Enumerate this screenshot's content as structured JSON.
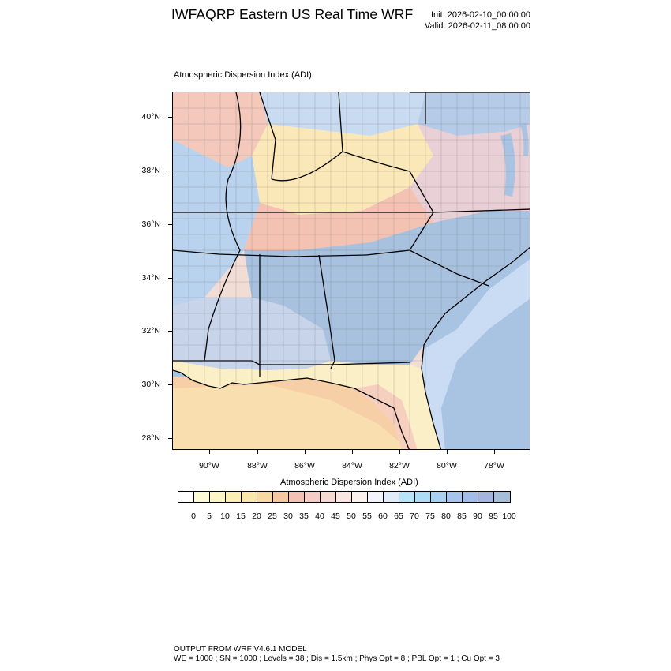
{
  "header": {
    "title": "IWFAQRP Eastern US Real Time WRF",
    "init": "Init: 2026-02-10_00:00:00",
    "valid": "Valid: 2026-02-11_08:00:00"
  },
  "plot_label": "Atmospheric Dispersion Index   (ADI)",
  "map": {
    "lat_labels": [
      "40°N",
      "38°N",
      "36°N",
      "34°N",
      "32°N",
      "30°N",
      "28°N"
    ],
    "lon_labels": [
      "90°W",
      "88°W",
      "86°W",
      "84°W",
      "82°W",
      "80°W",
      "78°W"
    ],
    "colors": {
      "ocean_offshore": "#a9c3e3",
      "ocean_near_coast": "#c9dcf3",
      "gulf_warm": "#f7cfa7",
      "low_adi": "#fdf4c8",
      "mid_adi": "#f5c7bb",
      "high_adi": "#a8c2e2"
    }
  },
  "labelbar": {
    "title": "Atmospheric Dispersion Index  (ADI)",
    "colors": [
      "#ffffff",
      "#fdfad6",
      "#fcf5c6",
      "#fbefb6",
      "#fae6a8",
      "#f8d9a2",
      "#f7c7a2",
      "#f4c1b4",
      "#f5cdc6",
      "#f7d9d3",
      "#f9e6e2",
      "#fbf2f0",
      "#f3f3fc",
      "#e2ebf9",
      "#b6e4f9",
      "#aedbf5",
      "#a9d2f2",
      "#a7c4ed",
      "#a4bce8",
      "#a3b4df",
      "#a6bfd9"
    ],
    "ticks": [
      "0",
      "5",
      "10",
      "15",
      "20",
      "25",
      "30",
      "35",
      "40",
      "45",
      "50",
      "55",
      "60",
      "65",
      "70",
      "75",
      "80",
      "85",
      "90",
      "95",
      "100"
    ]
  },
  "footer": {
    "line1": "OUTPUT FROM WRF V4.6.1 MODEL",
    "line2": "WE = 1000 ; SN = 1000 ; Levels = 38 ; Dis = 1.5km ; Phys Opt = 8 ; PBL Opt = 1 ; Cu Opt = 3"
  }
}
